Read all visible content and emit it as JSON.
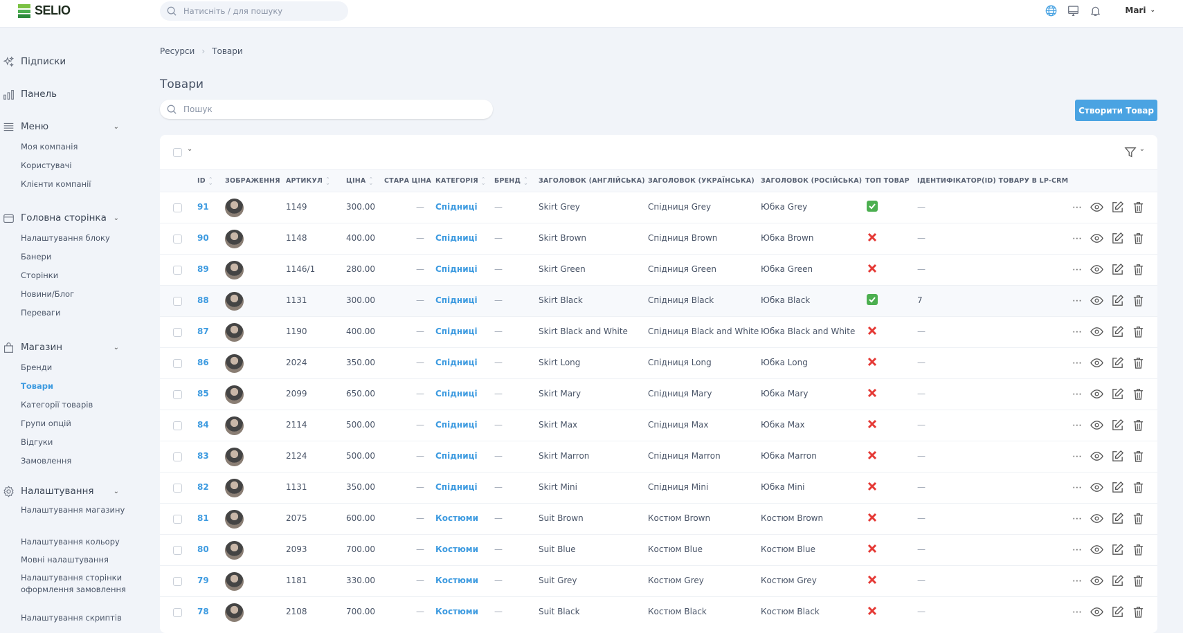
{
  "app": {
    "logo": "SELIO",
    "search_placeholder": "Натисніть / для пошуку",
    "user": "Mari"
  },
  "sidebar": {
    "sections": [
      {
        "label": "Підписки",
        "icon": "sparkles-icon",
        "items": []
      },
      {
        "label": "Панель",
        "icon": "bar-chart-icon",
        "items": []
      },
      {
        "label": "Меню",
        "icon": "menu-lines-icon",
        "items": [
          "Моя компанія",
          "Користувачі",
          "Клієнти компанії"
        ]
      },
      {
        "label": "Головна сторінка",
        "icon": "layout-icon",
        "items": [
          "Налаштування блоку",
          "Банери",
          "Сторінки",
          "Новини/Блог",
          "Переваги"
        ]
      },
      {
        "label": "Магазин",
        "icon": "shopping-bag-icon",
        "items": [
          "Бренди",
          "Товари",
          "Категорії товарів",
          "Групи опцій",
          "Відгуки",
          "Замовлення"
        ]
      },
      {
        "label": "Налаштування",
        "icon": "gear-icon",
        "items": [
          "Налаштування магазину",
          "Налаштування кольору",
          "Мовні налаштування",
          "Налаштування сторінки оформлення замовлення",
          "Налаштування скриптів"
        ]
      }
    ],
    "active_item": "Товари"
  },
  "breadcrumb": [
    "Ресурси",
    "Товари"
  ],
  "page": {
    "title": "Товари",
    "search_placeholder": "Пошук",
    "create_button": "Створити Товар"
  },
  "colors": {
    "accent": "#3e9be0",
    "button": "#4aa3e2",
    "top_yes": "#4caf50",
    "top_no": "#e53935"
  },
  "table": {
    "columns": [
      "ID",
      "ЗОБРАЖЕННЯ",
      "АРТИКУЛ",
      "ЦІНА",
      "СТАРА ЦІНА",
      "КАТЕГОРІЯ",
      "БРЕНД",
      "ЗАГОЛОВОК (АНГЛІЙСЬКА)",
      "ЗАГОЛОВОК (УКРАЇНСЬКА)",
      "ЗАГОЛОВОК (РОСІЙСЬКА)",
      "ТОП ТОВАР",
      "ІДЕНТИФІКАТОР(ID) ТОВАРУ В LP-CRM"
    ],
    "rows": [
      {
        "id": "91",
        "sku": "1149",
        "price": "300.00",
        "old_price": "—",
        "category": "Спідниці",
        "brand": "—",
        "en": "Skirt Grey",
        "uk": "Спідниця Grey",
        "ru": "Юбка Grey",
        "top": true,
        "lp": "—"
      },
      {
        "id": "90",
        "sku": "1148",
        "price": "400.00",
        "old_price": "—",
        "category": "Спідниці",
        "brand": "—",
        "en": "Skirt Brown",
        "uk": "Спідниця Brown",
        "ru": "Юбка Brown",
        "top": false,
        "lp": "—"
      },
      {
        "id": "89",
        "sku": "1146/1",
        "price": "280.00",
        "old_price": "—",
        "category": "Спідниці",
        "brand": "—",
        "en": "Skirt Green",
        "uk": "Спідниця Green",
        "ru": "Юбка Green",
        "top": false,
        "lp": "—"
      },
      {
        "id": "88",
        "sku": "1131",
        "price": "300.00",
        "old_price": "—",
        "category": "Спідниці",
        "brand": "—",
        "en": "Skirt Black",
        "uk": "Спідниця Black",
        "ru": "Юбка Black",
        "top": true,
        "lp": "7",
        "hover": true
      },
      {
        "id": "87",
        "sku": "1190",
        "price": "400.00",
        "old_price": "—",
        "category": "Спідниці",
        "brand": "—",
        "en": "Skirt Black and White",
        "uk": "Спідниця Black and White",
        "ru": "Юбка Black and White",
        "top": false,
        "lp": "—"
      },
      {
        "id": "86",
        "sku": "2024",
        "price": "350.00",
        "old_price": "—",
        "category": "Спідниці",
        "brand": "—",
        "en": "Skirt Long",
        "uk": "Спідниця Long",
        "ru": "Юбка Long",
        "top": false,
        "lp": "—"
      },
      {
        "id": "85",
        "sku": "2099",
        "price": "650.00",
        "old_price": "—",
        "category": "Спідниці",
        "brand": "—",
        "en": "Skirt Mary",
        "uk": "Спідниця Mary",
        "ru": "Юбка Mary",
        "top": false,
        "lp": "—"
      },
      {
        "id": "84",
        "sku": "2114",
        "price": "500.00",
        "old_price": "—",
        "category": "Спідниці",
        "brand": "—",
        "en": "Skirt Max",
        "uk": "Спідниця Max",
        "ru": "Юбка Max",
        "top": false,
        "lp": "—"
      },
      {
        "id": "83",
        "sku": "2124",
        "price": "500.00",
        "old_price": "—",
        "category": "Спідниці",
        "brand": "—",
        "en": "Skirt Marron",
        "uk": "Спідниця Marron",
        "ru": "Юбка Marron",
        "top": false,
        "lp": "—"
      },
      {
        "id": "82",
        "sku": "1131",
        "price": "350.00",
        "old_price": "—",
        "category": "Спідниці",
        "brand": "—",
        "en": "Skirt Mini",
        "uk": "Спідниця Mini",
        "ru": "Юбка Mini",
        "top": false,
        "lp": "—"
      },
      {
        "id": "81",
        "sku": "2075",
        "price": "600.00",
        "old_price": "—",
        "category": "Костюми",
        "brand": "—",
        "en": "Suit Brown",
        "uk": "Костюм Brown",
        "ru": "Костюм Brown",
        "top": false,
        "lp": "—"
      },
      {
        "id": "80",
        "sku": "2093",
        "price": "700.00",
        "old_price": "—",
        "category": "Костюми",
        "brand": "—",
        "en": "Suit Blue",
        "uk": "Костюм Blue",
        "ru": "Костюм Blue",
        "top": false,
        "lp": "—"
      },
      {
        "id": "79",
        "sku": "1181",
        "price": "330.00",
        "old_price": "—",
        "category": "Костюми",
        "brand": "—",
        "en": "Suit Grey",
        "uk": "Костюм Grey",
        "ru": "Костюм Grey",
        "top": false,
        "lp": "—"
      },
      {
        "id": "78",
        "sku": "2108",
        "price": "700.00",
        "old_price": "—",
        "category": "Костюми",
        "brand": "—",
        "en": "Suit Black",
        "uk": "Костюм Black",
        "ru": "Костюм Black",
        "top": false,
        "lp": "—"
      }
    ]
  }
}
